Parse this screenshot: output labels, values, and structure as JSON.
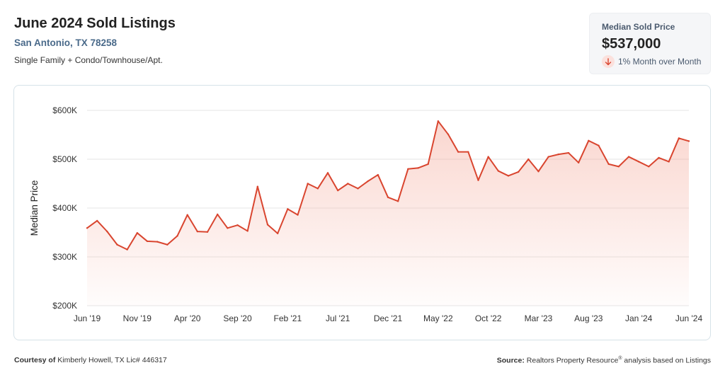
{
  "header": {
    "title": "June 2024 Sold Listings",
    "location": "San Antonio, TX 78258",
    "property_types": "Single Family + Condo/Townhouse/Apt."
  },
  "kpi": {
    "label": "Median Sold Price",
    "value": "$537,000",
    "change_text": "1% Month over Month",
    "direction_icon": "arrow-down-icon"
  },
  "footer": {
    "courtesy_label": "Courtesy of",
    "courtesy_text": "Kimberly Howell, TX Lic# 446317",
    "source_label": "Source:",
    "source_text": "Realtors Property Resource",
    "source_sup": "®",
    "source_suffix": "analysis based on Listings"
  },
  "colors": {
    "line": "#d9452f",
    "fill": "#f4a595",
    "grid": "#e6e6e6",
    "accent_down_bg": "#fbe1dd"
  },
  "chart_data": {
    "type": "area",
    "ylabel": "Median Price",
    "ylim": [
      200000,
      600000
    ],
    "y_ticks": [
      200000,
      300000,
      400000,
      500000,
      600000
    ],
    "y_tick_labels": [
      "$200K",
      "$300K",
      "$400K",
      "$500K",
      "$600K"
    ],
    "x_tick_labels": [
      "Jun '19",
      "Nov '19",
      "Apr '20",
      "Sep '20",
      "Feb '21",
      "Jul '21",
      "Dec '21",
      "May '22",
      "Oct '22",
      "Mar '23",
      "Aug '23",
      "Jan '24",
      "Jun '24"
    ],
    "x_tick_every": 5,
    "grid": true,
    "series": [
      {
        "values": [
          359000,
          374000,
          352000,
          325000,
          315000,
          349000,
          332000,
          331000,
          325000,
          343000,
          386000,
          352000,
          351000,
          387000,
          359000,
          365000,
          353000,
          444000,
          366000,
          348000,
          398000,
          386000,
          450000,
          440000,
          472000,
          436000,
          450000,
          440000,
          455000,
          468000,
          422000,
          414000,
          480000,
          482000,
          490000,
          578000,
          551000,
          515000,
          515000,
          457000,
          505000,
          476000,
          466000,
          474000,
          500000,
          475000,
          505000,
          510000,
          513000,
          493000,
          538000,
          528000,
          490000,
          485000,
          505000,
          495000,
          485000,
          503000,
          495000,
          543000,
          537000
        ]
      }
    ]
  }
}
